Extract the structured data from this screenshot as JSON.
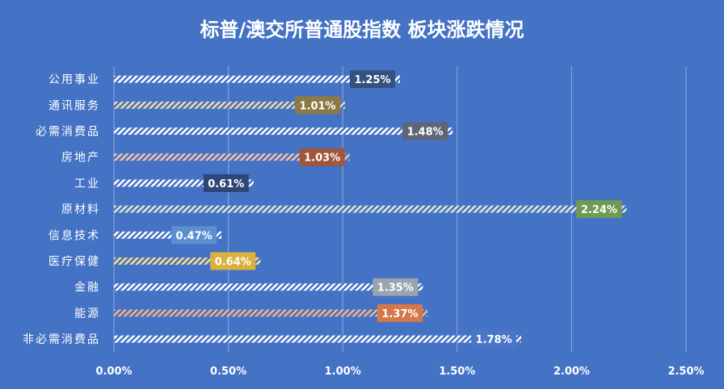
{
  "chart_data": {
    "type": "bar",
    "orientation": "horizontal",
    "title": "标普/澳交所普通股指数 板块涨跌情况",
    "categories": [
      "公用事业",
      "通讯服务",
      "必需消费品",
      "房地产",
      "工业",
      "原材料",
      "信息技术",
      "医疗保健",
      "金融",
      "能源",
      "非必需消费品"
    ],
    "values": [
      1.25,
      1.01,
      1.48,
      1.03,
      0.61,
      2.24,
      0.47,
      0.64,
      1.35,
      1.37,
      1.78
    ],
    "data_labels": [
      "1.25%",
      "1.01%",
      "1.48%",
      "1.03%",
      "0.61%",
      "2.24%",
      "0.47%",
      "0.64%",
      "1.35%",
      "1.37%",
      "1.78%"
    ],
    "label_colors": [
      "#35517E",
      "#8C7A45",
      "#5E6675",
      "#A0563A",
      "#2E4675",
      "#6E9A52",
      "#5B8FD0",
      "#D9B23C",
      "#9AA3B2",
      "#D4784A",
      "#4A76C8"
    ],
    "hatch_colors": [
      "#FFFFFF",
      "#F4D9A6",
      "#FFFFFF",
      "#F6C6A6",
      "#FFFFFF",
      "#DDEBD0",
      "#FFFFFF",
      "#FFE08A",
      "#FFFFFF",
      "#F6B48A",
      "#FFFFFF"
    ],
    "xlim": [
      0,
      2.5
    ],
    "xticks": [
      "0.00%",
      "0.50%",
      "1.00%",
      "1.50%",
      "2.00%",
      "2.50%"
    ],
    "xtick_values": [
      0,
      0.5,
      1.0,
      1.5,
      2.0,
      2.5
    ],
    "grid": true,
    "background": "#4472C4"
  }
}
